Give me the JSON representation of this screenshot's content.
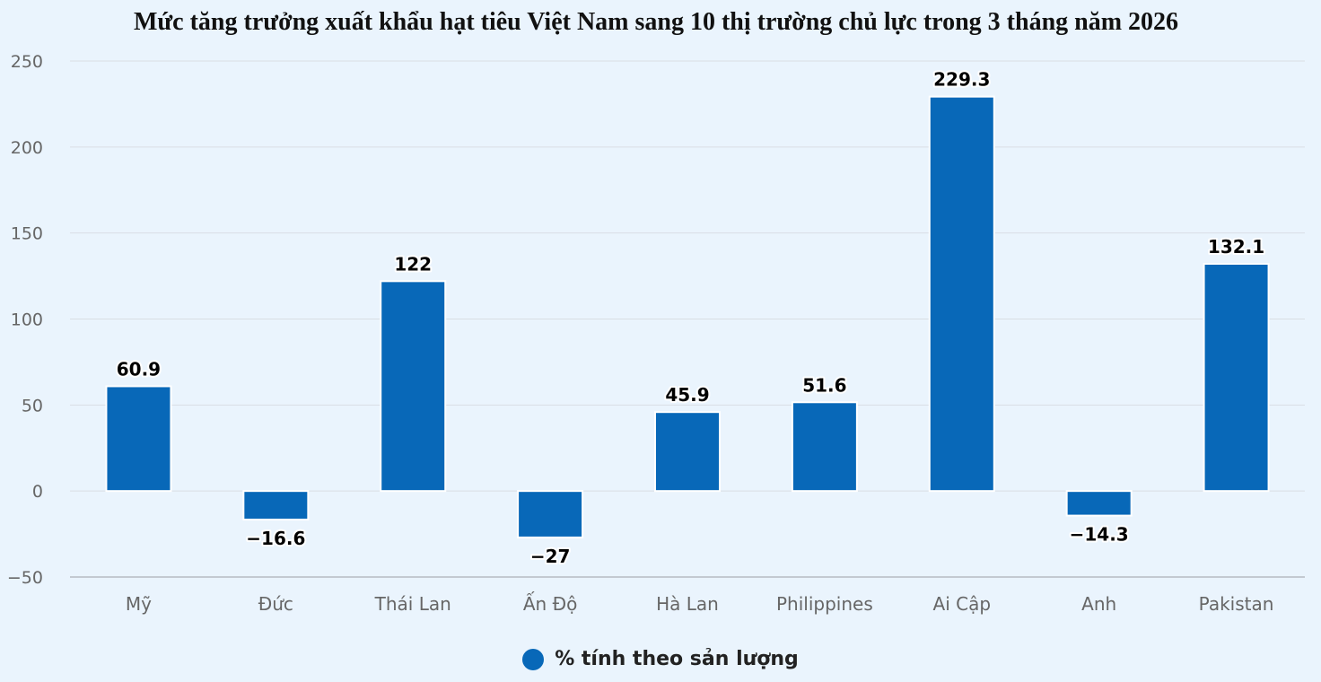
{
  "chart_data": {
    "type": "bar",
    "title": "Mức tăng trưởng xuất khẩu hạt tiêu Việt Nam sang 10 thị trường chủ lực trong 3 tháng năm 2026",
    "categories": [
      "Mỹ",
      "Đức",
      "Thái Lan",
      "Ấn Độ",
      "Hà Lan",
      "Philippines",
      "Ai Cập",
      "Anh",
      "Pakistan"
    ],
    "series": [
      {
        "name": "% tính theo sản lượng",
        "values": [
          60.9,
          -16.6,
          122,
          -27,
          45.9,
          51.6,
          229.3,
          -14.3,
          132.1
        ],
        "labels": [
          "60.9",
          "−16.6",
          "122",
          "−27",
          "45.9",
          "51.6",
          "229.3",
          "−14.3",
          "132.1"
        ]
      }
    ],
    "ylim": [
      -50,
      250
    ],
    "yticks": [
      250,
      200,
      150,
      100,
      50,
      0,
      -50
    ],
    "ytick_labels": [
      "250",
      "200",
      "150",
      "100",
      "50",
      "0",
      "−50"
    ],
    "grid": true,
    "legend_position": "bottom-center",
    "colors": {
      "bar": "#0868b8",
      "grid": "#d9dee4",
      "background": "#eaf4fd"
    }
  }
}
